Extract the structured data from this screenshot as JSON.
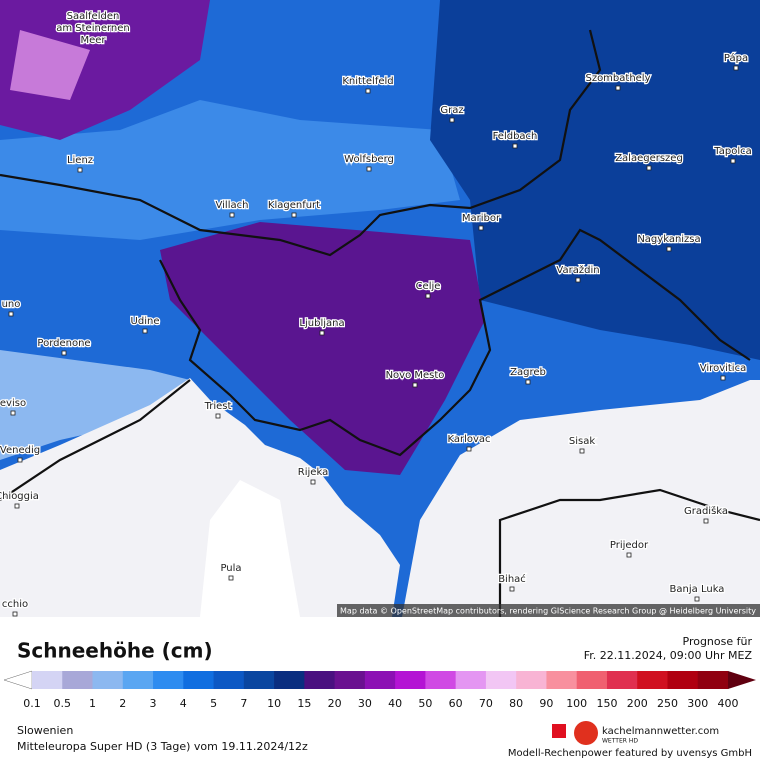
{
  "map": {
    "cities": [
      {
        "label": "Saalfelden"
      },
      {
        "label": "am Steinernen"
      },
      {
        "label": "Meer"
      },
      {
        "label": "Knittelfeld"
      },
      {
        "label": "Szombathely"
      },
      {
        "label": "Pápa"
      },
      {
        "label": "Graz"
      },
      {
        "label": "Feldbach"
      },
      {
        "label": "Lienz"
      },
      {
        "label": "Wolfsberg"
      },
      {
        "label": "Zalaegerszeg"
      },
      {
        "label": "Tapolca"
      },
      {
        "label": "Villach"
      },
      {
        "label": "Klagenfurt"
      },
      {
        "label": "Maribor"
      },
      {
        "label": "Nagykanizsa"
      },
      {
        "label": "Varaždin"
      },
      {
        "label": "Celje"
      },
      {
        "label": "Udine"
      },
      {
        "label": "Ljubljana"
      },
      {
        "label": "Pordenone"
      },
      {
        "label": "Novo Mesto"
      },
      {
        "label": "Zagreb"
      },
      {
        "label": "Virovitica"
      },
      {
        "label": "Triest"
      },
      {
        "label": "Karlovac"
      },
      {
        "label": "Sisak"
      },
      {
        "label": "Venedig"
      },
      {
        "label": "Rijeka"
      },
      {
        "label": "Chioggia"
      },
      {
        "label": "Gradiška"
      },
      {
        "label": "Prijedor"
      },
      {
        "label": "Pula"
      },
      {
        "label": "Bihać"
      },
      {
        "label": "Banja Luka"
      },
      {
        "label": "uno"
      },
      {
        "label": "eviso"
      },
      {
        "label": "cchio"
      }
    ],
    "attribution": "Map data © OpenStreetMap contributors, rendering GIScience Research Group @ Heidelberg University"
  },
  "legend": {
    "title": "Schneehöhe (cm)",
    "labels": [
      "0.1",
      "0.5",
      "1",
      "2",
      "3",
      "4",
      "5",
      "7",
      "10",
      "15",
      "20",
      "30",
      "40",
      "50",
      "60",
      "70",
      "80",
      "90",
      "100",
      "150",
      "200",
      "250",
      "300",
      "400"
    ],
    "colors": [
      "#d4d4f4",
      "#a8a8d8",
      "#8cb8f0",
      "#5aa6f2",
      "#2e8cf0",
      "#106ee0",
      "#0c58c4",
      "#0a46a0",
      "#0a2e80",
      "#4a1080",
      "#6a1090",
      "#8c10b4",
      "#b414d4",
      "#d04ae4",
      "#e496f2",
      "#f2c6f4",
      "#f8b4d4",
      "#f8909e",
      "#f06070",
      "#e03050",
      "#d01020",
      "#b00010",
      "#900010"
    ],
    "end_color": "#600010"
  },
  "forecast": {
    "label": "Prognose für",
    "time": "Fr. 22.11.2024, 09:00 Uhr MEZ"
  },
  "footer": {
    "region": "Slowenien",
    "model": "Mitteleuropa Super HD (3 Tage) vom 19.11.2024/12z",
    "site": "kachelmannwetter.com",
    "site_sub": "WETTER HD",
    "credit": "Modell-Rechenpower featured by uvensys GmbH"
  }
}
